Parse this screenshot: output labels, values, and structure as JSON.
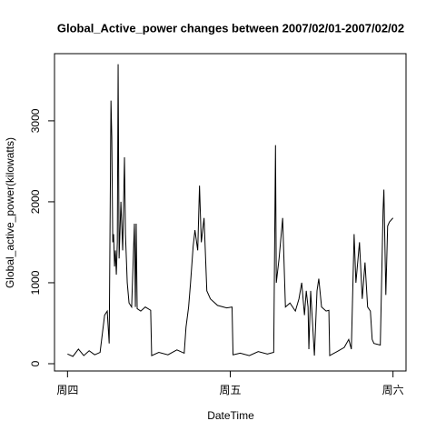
{
  "chart_data": {
    "type": "line",
    "title": "Global_Active_power changes between 2007/02/01-2007/02/02",
    "xlabel": "DateTime",
    "ylabel": "Global_active_power(kilowatts)",
    "color": "#000000",
    "xlim": [
      -0.08,
      2.08
    ],
    "ylim": [
      -90,
      3830
    ],
    "xticks": [
      {
        "value": 0,
        "label": "周四"
      },
      {
        "value": 1,
        "label": "周五"
      },
      {
        "value": 2,
        "label": "周六"
      }
    ],
    "yticks": [
      0,
      1000,
      2000,
      3000
    ],
    "grid": false,
    "x": [
      0,
      0.033,
      0.067,
      0.1,
      0.133,
      0.167,
      0.2,
      0.228,
      0.244,
      0.256,
      0.261,
      0.267,
      0.272,
      0.278,
      0.283,
      0.289,
      0.294,
      0.3,
      0.306,
      0.311,
      0.317,
      0.328,
      0.339,
      0.35,
      0.356,
      0.367,
      0.378,
      0.394,
      0.411,
      0.417,
      0.422,
      0.428,
      0.45,
      0.478,
      0.511,
      0.517,
      0.561,
      0.617,
      0.672,
      0.717,
      0.728,
      0.744,
      0.756,
      0.772,
      0.783,
      0.8,
      0.811,
      0.822,
      0.839,
      0.856,
      0.878,
      0.922,
      0.978,
      1.011,
      1.017,
      1.061,
      1.117,
      1.172,
      1.228,
      1.267,
      1.278,
      1.283,
      1.3,
      1.322,
      1.339,
      1.367,
      1.4,
      1.422,
      1.439,
      1.456,
      1.467,
      1.478,
      1.483,
      1.494,
      1.517,
      1.533,
      1.544,
      1.561,
      1.589,
      1.606,
      1.611,
      1.656,
      1.7,
      1.728,
      1.744,
      1.761,
      1.772,
      1.794,
      1.811,
      1.828,
      1.844,
      1.861,
      1.872,
      1.883,
      1.922,
      1.939,
      1.944,
      1.956,
      1.967,
      1.978,
      2.0
    ],
    "values": [
      120,
      90,
      180,
      100,
      160,
      110,
      140,
      600,
      650,
      250,
      1600,
      3250,
      2800,
      1500,
      1600,
      1200,
      1400,
      1100,
      1500,
      3700,
      1300,
      2000,
      1400,
      2550,
      1600,
      1000,
      750,
      700,
      1730,
      700,
      1730,
      680,
      650,
      700,
      660,
      100,
      140,
      110,
      170,
      130,
      450,
      700,
      1000,
      1450,
      1650,
      1400,
      2200,
      1500,
      1800,
      900,
      800,
      720,
      690,
      700,
      110,
      130,
      100,
      150,
      120,
      140,
      2700,
      1000,
      1300,
      1800,
      700,
      750,
      650,
      800,
      1000,
      600,
      900,
      700,
      180,
      900,
      100,
      900,
      1050,
      700,
      650,
      660,
      100,
      150,
      200,
      300,
      180,
      1600,
      1000,
      1500,
      800,
      1250,
      700,
      650,
      300,
      250,
      230,
      1900,
      2150,
      850,
      1700,
      1750,
      1800
    ]
  }
}
